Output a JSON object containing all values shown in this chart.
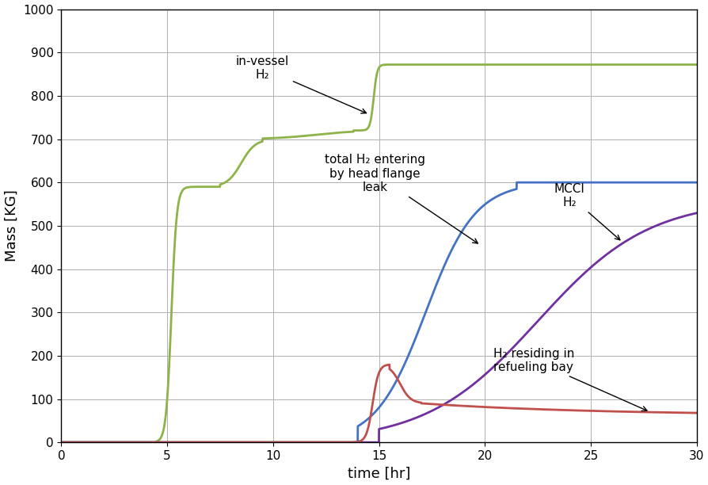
{
  "title": "",
  "xlabel": "time [hr]",
  "ylabel": "Mass [KG]",
  "xlim": [
    0,
    30
  ],
  "ylim": [
    0,
    1000
  ],
  "xticks": [
    0,
    5,
    10,
    15,
    20,
    25,
    30
  ],
  "yticks": [
    0,
    100,
    200,
    300,
    400,
    500,
    600,
    700,
    800,
    900,
    1000
  ],
  "grid_color": "#b0b0b0",
  "background_color": "#ffffff",
  "colors": {
    "in_vessel": "#8db34a",
    "total_h2": "#4472c4",
    "mcci": "#7030a0",
    "refueling_bay": "#c0504d"
  }
}
